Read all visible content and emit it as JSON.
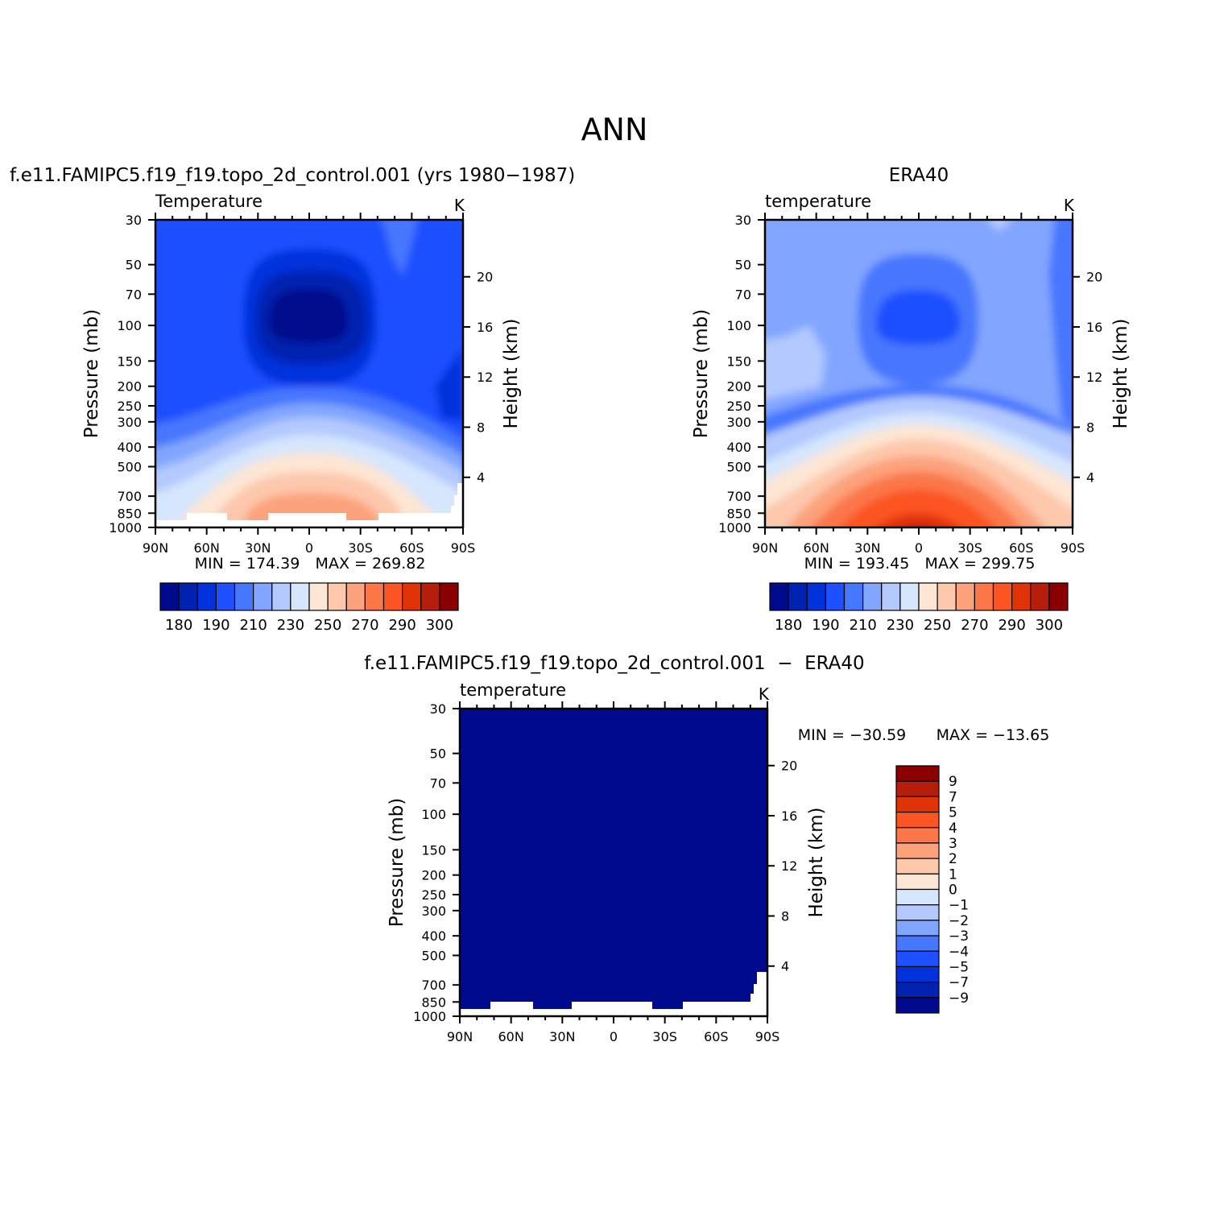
{
  "figure": {
    "title": "ANN"
  },
  "colors": {
    "fill_levels": [
      "#000a8c",
      "#0022b0",
      "#0032dc",
      "#1e50ff",
      "#4677ff",
      "#82a6ff",
      "#b3c9ff",
      "#d6e6fc",
      "#fde6d4",
      "#fdc8ac",
      "#fca27c",
      "#fb7749",
      "#fc5422",
      "#e03308",
      "#b51e0a",
      "#8a0000"
    ]
  },
  "chart_data": [
    {
      "type": "heatmap",
      "panel": "model",
      "title": "f.e11.FAMIPC5.f19_f19.topo_2d_control.001 (yrs 1980−1987)",
      "variable": "Temperature",
      "units": "K",
      "ylabel": "Pressure (mb)",
      "y2label": "Height (km)",
      "x_ticks": [
        "90N",
        "60N",
        "30N",
        "0",
        "30S",
        "60S",
        "90S"
      ],
      "y_ticks": [
        "30",
        "50",
        "70",
        "100",
        "150",
        "200",
        "250",
        "300",
        "400",
        "500",
        "700",
        "850",
        "1000"
      ],
      "y2_ticks": [
        "20",
        "16",
        "12",
        "8",
        "4"
      ],
      "y_scale": "log",
      "ylim": [
        1000,
        30
      ],
      "xlim": [
        90,
        -90
      ],
      "min_label": "MIN = 174.39",
      "max_label": "MAX = 269.82",
      "min": 174.39,
      "max": 269.82,
      "colorbar": {
        "orientation": "horizontal",
        "labels": [
          "180",
          "190",
          "210",
          "230",
          "250",
          "270",
          "290",
          "300"
        ]
      }
    },
    {
      "type": "heatmap",
      "panel": "obs",
      "title": "ERA40",
      "variable": "temperature",
      "units": "K",
      "ylabel": "Pressure (mb)",
      "y2label": "Height (km)",
      "x_ticks": [
        "90N",
        "60N",
        "30N",
        "0",
        "30S",
        "60S",
        "90S"
      ],
      "y_ticks": [
        "30",
        "50",
        "70",
        "100",
        "150",
        "200",
        "250",
        "300",
        "400",
        "500",
        "700",
        "850",
        "1000"
      ],
      "y2_ticks": [
        "20",
        "16",
        "12",
        "8",
        "4"
      ],
      "y_scale": "log",
      "ylim": [
        1000,
        30
      ],
      "xlim": [
        90,
        -90
      ],
      "min_label": "MIN = 193.45",
      "max_label": "MAX = 299.75",
      "min": 193.45,
      "max": 299.75,
      "colorbar": {
        "orientation": "horizontal",
        "labels": [
          "180",
          "190",
          "210",
          "230",
          "250",
          "270",
          "290",
          "300"
        ]
      }
    },
    {
      "type": "heatmap",
      "panel": "diff",
      "title": "f.e11.FAMIPC5.f19_f19.topo_2d_control.001  −  ERA40",
      "variable": "temperature",
      "units": "K",
      "ylabel": "Pressure (mb)",
      "y2label": "Height (km)",
      "x_ticks": [
        "90N",
        "60N",
        "30N",
        "0",
        "30S",
        "60S",
        "90S"
      ],
      "y_ticks": [
        "30",
        "50",
        "70",
        "100",
        "150",
        "200",
        "250",
        "300",
        "400",
        "500",
        "700",
        "850",
        "1000"
      ],
      "y2_ticks": [
        "20",
        "16",
        "12",
        "8",
        "4"
      ],
      "y_scale": "log",
      "ylim": [
        1000,
        30
      ],
      "xlim": [
        90,
        -90
      ],
      "min_label": "MIN = −30.59",
      "max_label": "MAX = −13.65",
      "min": -30.59,
      "max": -13.65,
      "colorbar": {
        "orientation": "vertical",
        "labels": [
          "9",
          "7",
          "5",
          "4",
          "3",
          "2",
          "1",
          "0",
          "−1",
          "−2",
          "−3",
          "−4",
          "−5",
          "−7",
          "−9"
        ]
      }
    }
  ]
}
